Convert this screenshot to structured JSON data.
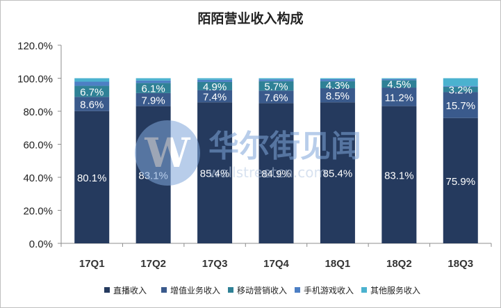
{
  "chart_data": {
    "type": "bar",
    "stacked": true,
    "title": "陌陌营业收入构成",
    "categories": [
      "17Q1",
      "17Q2",
      "17Q3",
      "17Q4",
      "18Q1",
      "18Q2",
      "18Q3"
    ],
    "y_ticks": [
      "0.0%",
      "20.0%",
      "40.0%",
      "60.0%",
      "80.0%",
      "100.0%",
      "120.0%"
    ],
    "ylim": [
      0,
      120
    ],
    "series": [
      {
        "name": "直播收入",
        "color": "#253a5e",
        "values": [
          80.1,
          83.1,
          85.4,
          84.9,
          85.4,
          83.1,
          75.9
        ],
        "labels": [
          "80.1%",
          "83.1%",
          "85.4%",
          "84.9%",
          "85.4%",
          "83.1%",
          "75.9%"
        ]
      },
      {
        "name": "增值业务收入",
        "color": "#3a5a8c",
        "values": [
          8.6,
          7.9,
          7.4,
          7.6,
          8.5,
          11.2,
          15.7
        ],
        "labels": [
          "8.6%",
          "7.9%",
          "7.4%",
          "7.6%",
          "8.5%",
          "11.2%",
          "15.7%"
        ]
      },
      {
        "name": "移动营销收入",
        "color": "#2f8196",
        "values": [
          6.7,
          6.1,
          4.9,
          5.7,
          4.3,
          4.5,
          3.2
        ],
        "labels": [
          "6.7%",
          "6.1%",
          "4.9%",
          "5.7%",
          "4.3%",
          "4.5%",
          "3.2%"
        ]
      },
      {
        "name": "手机游戏收入",
        "color": "#4d7fc4",
        "values": [
          2.5,
          1.5,
          1.3,
          1.1,
          1.2,
          0.7,
          0.5
        ],
        "labels": [
          "",
          "",
          "",
          "",
          "",
          "",
          ""
        ]
      },
      {
        "name": "其他服务收入",
        "color": "#4bb2cf",
        "values": [
          2.1,
          1.4,
          1.0,
          0.7,
          0.6,
          0.5,
          4.7
        ],
        "labels": [
          "",
          "",
          "",
          "",
          "",
          "",
          ""
        ]
      }
    ],
    "grid": false,
    "legend": "bottom"
  },
  "watermark": {
    "logo_letter": "W",
    "cn": "华尔街见闻",
    "en": "wallstreetcn.com"
  }
}
